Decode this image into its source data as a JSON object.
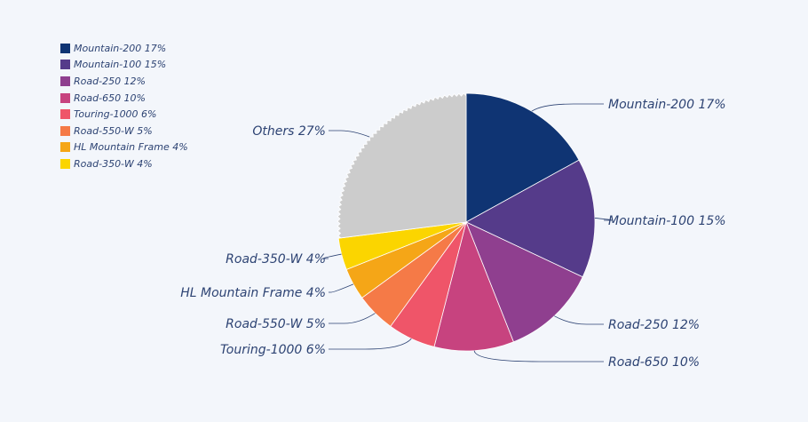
{
  "chart_data": {
    "type": "pie",
    "title": "",
    "legend_position": "top-left",
    "direction": "clockwise",
    "start": "top",
    "slices": [
      {
        "label": "Mountain-200",
        "value": 17,
        "text": "Mountain-200 17%",
        "color": "#0f3473"
      },
      {
        "label": "Mountain-100",
        "value": 15,
        "text": "Mountain-100 15%",
        "color": "#553b8a"
      },
      {
        "label": "Road-250",
        "value": 12,
        "text": "Road-250 12%",
        "color": "#8f3f8f"
      },
      {
        "label": "Road-650",
        "value": 10,
        "text": "Road-650 10%",
        "color": "#c7437f"
      },
      {
        "label": "Touring-1000",
        "value": 6,
        "text": "Touring-1000 6%",
        "color": "#ef5569"
      },
      {
        "label": "Road-550-W",
        "value": 5,
        "text": "Road-550-W 5%",
        "color": "#f57a47"
      },
      {
        "label": "HL Mountain Frame",
        "value": 4,
        "text": "HL Mountain Frame 4%",
        "color": "#f5a617"
      },
      {
        "label": "Road-350-W",
        "value": 4,
        "text": "Road-350-W 4%",
        "color": "#fbd500"
      },
      {
        "label": "Others",
        "value": 27,
        "text": "Others 27%",
        "color": "#cccccc"
      }
    ],
    "legend": [
      "Mountain-200 17%",
      "Mountain-100 15%",
      "Road-250 12%",
      "Road-650 10%",
      "Touring-1000 6%",
      "Road-550-W 5%",
      "HL Mountain Frame 4%",
      "Road-350-W 4%"
    ]
  }
}
